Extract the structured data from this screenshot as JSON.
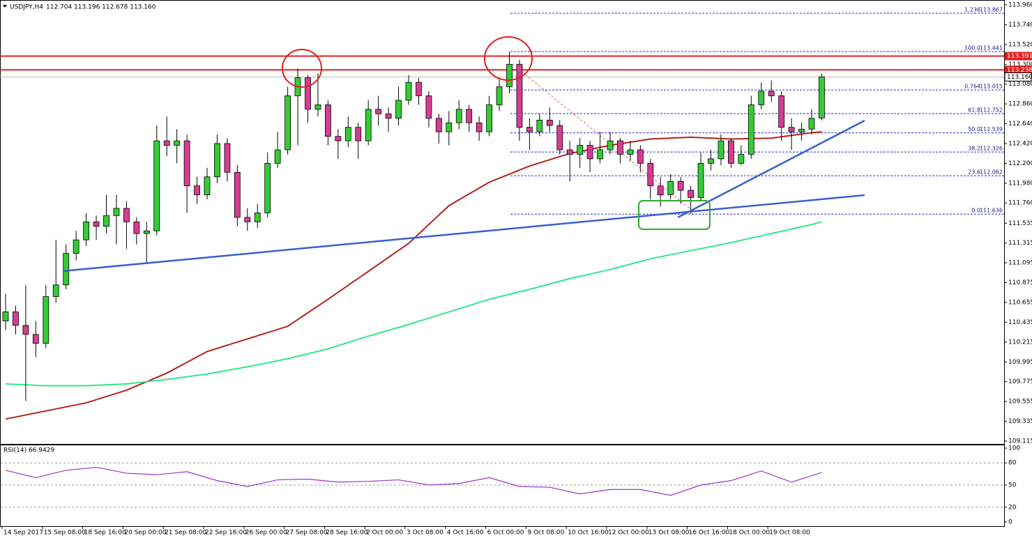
{
  "chart_data": {
    "type": "candlestick",
    "header": {
      "symbol": "USDJPY,H4",
      "ohlc": "112.704 113.196 112.678 113.160"
    },
    "ylim": [
      109.076,
      114.014
    ],
    "yticks": [
      {
        "value": 113.96,
        "label": "113.960"
      },
      {
        "value": 113.74,
        "label": "113.740"
      },
      {
        "value": 113.52,
        "label": "113.520"
      },
      {
        "value": 113.3,
        "label": "113.300"
      },
      {
        "value": 113.08,
        "label": "113.080"
      },
      {
        "value": 112.86,
        "label": "112.860"
      },
      {
        "value": 112.64,
        "label": "112.640"
      },
      {
        "value": 112.42,
        "label": "112.420"
      },
      {
        "value": 112.2,
        "label": "112.200"
      },
      {
        "value": 111.98,
        "label": "111.980"
      },
      {
        "value": 111.76,
        "label": "111.760"
      },
      111.535,
      111.315,
      111.095,
      110.875,
      110.655,
      110.435,
      110.215,
      109.995,
      109.775,
      109.555,
      109.335,
      109.115
    ],
    "x_tick_labels": [
      "14 Sep 2017",
      "15 Sep 08:00",
      "18 Sep 16:00",
      "20 Sep 00:00",
      "21 Sep 08:00",
      "22 Sep 16:00",
      "26 Sep 00:00",
      "27 Sep 08:00",
      "28 Sep 16:00",
      "2 Oct 00:00",
      "3 Oct 08:00",
      "4 Oct 16:00",
      "6 Oct 00:00",
      "9 Oct 08:00",
      "10 Oct 16:00",
      "12 Oct 00:00",
      "13 Oct 08:00",
      "16 Oct 16:00",
      "18 Oct 00:00",
      "19 Oct 08:00"
    ],
    "candles": {
      "up_color": "#33cc33",
      "down_color": "#d63c93",
      "open": [
        110.45,
        110.55,
        110.4,
        110.3,
        110.2,
        110.72,
        110.85,
        111.2,
        111.35,
        111.55,
        111.5,
        111.62,
        111.7,
        111.55,
        111.42,
        111.45,
        112.45,
        112.4,
        112.45,
        111.95,
        111.85,
        112.05,
        112.42,
        112.1,
        111.6,
        111.55,
        111.65,
        112.2,
        112.35,
        112.95,
        113.15,
        112.8,
        112.85,
        112.5,
        112.45,
        112.6,
        112.45,
        112.8,
        112.75,
        112.7,
        112.9,
        113.1,
        112.95,
        112.7,
        112.55,
        112.65,
        112.8,
        112.65,
        112.55,
        112.85,
        113.05,
        113.3,
        112.6,
        112.55,
        112.68,
        112.62,
        112.35,
        112.3,
        112.4,
        112.25,
        112.35,
        112.45,
        112.3,
        112.35,
        112.2,
        111.95,
        111.85,
        112.0,
        111.9,
        111.82,
        112.2,
        112.25,
        112.45,
        112.2,
        112.3,
        112.85,
        113.0,
        112.95,
        112.6,
        112.55,
        112.58,
        112.704
      ],
      "high": [
        110.75,
        110.62,
        110.85,
        110.45,
        110.85,
        111.35,
        111.3,
        111.45,
        111.65,
        111.62,
        111.85,
        111.85,
        111.78,
        111.6,
        111.55,
        112.62,
        112.72,
        112.58,
        112.52,
        112.05,
        112.15,
        112.52,
        112.48,
        112.18,
        111.7,
        111.75,
        112.32,
        112.55,
        113.05,
        113.25,
        113.18,
        113.2,
        112.9,
        112.58,
        112.72,
        112.65,
        112.9,
        112.95,
        112.82,
        113.05,
        113.18,
        113.15,
        113.0,
        112.75,
        112.78,
        112.9,
        112.85,
        112.72,
        112.95,
        113.15,
        113.44,
        113.35,
        112.7,
        112.75,
        112.82,
        112.68,
        112.45,
        112.48,
        112.45,
        112.55,
        112.55,
        112.48,
        112.45,
        112.4,
        112.25,
        112.05,
        112.08,
        112.05,
        111.95,
        112.32,
        112.35,
        112.52,
        112.48,
        112.4,
        112.95,
        113.1,
        113.12,
        113.0,
        112.7,
        112.65,
        112.8,
        113.196
      ],
      "low": [
        110.35,
        110.3,
        109.56,
        110.05,
        110.15,
        110.65,
        110.8,
        111.12,
        111.28,
        111.35,
        111.42,
        111.3,
        111.25,
        111.3,
        111.1,
        111.4,
        112.28,
        112.2,
        111.65,
        111.75,
        111.8,
        111.98,
        112.0,
        111.5,
        111.45,
        111.48,
        111.6,
        112.15,
        112.3,
        112.4,
        112.65,
        112.72,
        112.4,
        112.25,
        112.38,
        112.25,
        112.4,
        112.62,
        112.55,
        112.62,
        112.85,
        112.85,
        112.6,
        112.42,
        112.4,
        112.58,
        112.55,
        112.45,
        112.5,
        112.78,
        112.98,
        112.45,
        112.35,
        112.5,
        112.55,
        112.3,
        112.0,
        112.15,
        112.1,
        112.2,
        112.3,
        112.2,
        112.22,
        112.1,
        111.8,
        111.72,
        111.8,
        111.75,
        111.64,
        111.78,
        112.12,
        112.18,
        112.15,
        112.18,
        112.25,
        112.8,
        112.88,
        112.45,
        112.35,
        112.45,
        112.52,
        112.678
      ],
      "close": [
        110.55,
        110.4,
        110.3,
        110.2,
        110.72,
        110.85,
        111.2,
        111.35,
        111.55,
        111.5,
        111.62,
        111.7,
        111.55,
        111.42,
        111.45,
        112.45,
        112.4,
        112.45,
        111.95,
        111.85,
        112.05,
        112.42,
        112.1,
        111.6,
        111.55,
        111.65,
        112.2,
        112.35,
        112.95,
        113.15,
        112.8,
        112.85,
        112.5,
        112.45,
        112.6,
        112.45,
        112.8,
        112.75,
        112.7,
        112.9,
        113.1,
        112.95,
        112.7,
        112.55,
        112.65,
        112.8,
        112.65,
        112.55,
        112.85,
        113.05,
        113.3,
        112.6,
        112.55,
        112.68,
        112.62,
        112.35,
        112.3,
        112.4,
        112.25,
        112.35,
        112.45,
        112.3,
        112.35,
        112.2,
        111.95,
        111.85,
        112.0,
        111.9,
        111.82,
        112.2,
        112.25,
        112.45,
        112.2,
        112.3,
        112.85,
        113.0,
        112.95,
        112.6,
        112.55,
        112.58,
        112.7,
        113.16
      ]
    },
    "moving_averages": [
      {
        "color": "#b22222",
        "x": [
          0,
          4,
          8,
          12,
          16,
          20,
          24,
          28,
          32,
          36,
          40,
          44,
          48,
          52,
          56,
          60,
          64,
          68,
          72,
          76,
          80,
          81
        ],
        "values": [
          109.36,
          109.45,
          109.54,
          109.68,
          109.87,
          110.11,
          110.25,
          110.39,
          110.69,
          111.0,
          111.31,
          111.73,
          111.99,
          112.17,
          112.31,
          112.4,
          112.47,
          112.49,
          112.47,
          112.48,
          112.54,
          112.55
        ]
      },
      {
        "color": "#2ee88a",
        "x": [
          0,
          4,
          8,
          12,
          16,
          20,
          24,
          28,
          32,
          36,
          40,
          44,
          48,
          52,
          56,
          60,
          64,
          68,
          72,
          76,
          80,
          81
        ],
        "values": [
          109.75,
          109.73,
          109.73,
          109.75,
          109.8,
          109.86,
          109.94,
          110.03,
          110.14,
          110.28,
          110.41,
          110.55,
          110.69,
          110.8,
          110.92,
          111.02,
          111.14,
          111.23,
          111.32,
          111.42,
          111.52,
          111.55
        ]
      }
    ],
    "fibonacci": [
      {
        "level": "1.236",
        "price": 113.867
      },
      {
        "level": "100.0",
        "price": 113.441
      },
      {
        "level": "0.764",
        "price": 113.015
      },
      {
        "level": "61.8",
        "price": 112.752
      },
      {
        "level": "50.0",
        "price": 112.539
      },
      {
        "level": "38.2",
        "price": 112.326
      },
      {
        "level": "23.6",
        "price": 112.062
      },
      {
        "level": "0.0",
        "price": 111.636
      }
    ],
    "resistance_levels": [
      113.391,
      113.238
    ],
    "current_price": {
      "value": 113.16,
      "label": "113.160"
    },
    "rsi": {
      "title": "RSI(14) 66.9429",
      "color": "#9933cc",
      "ylim": [
        0,
        100
      ],
      "yticks": [
        100,
        80,
        50,
        20,
        0
      ],
      "x": [
        0,
        3,
        6,
        9,
        12,
        15,
        18,
        21,
        24,
        27,
        30,
        33,
        36,
        39,
        42,
        45,
        48,
        51,
        54,
        57,
        60,
        63,
        66,
        69,
        72,
        75,
        78,
        81
      ],
      "values": [
        70,
        60,
        70,
        74,
        66,
        64,
        68,
        56,
        48,
        57,
        58,
        54,
        55,
        57,
        50,
        52,
        60,
        48,
        47,
        38,
        44,
        44,
        36,
        50,
        56,
        69,
        54,
        66.94
      ]
    }
  }
}
